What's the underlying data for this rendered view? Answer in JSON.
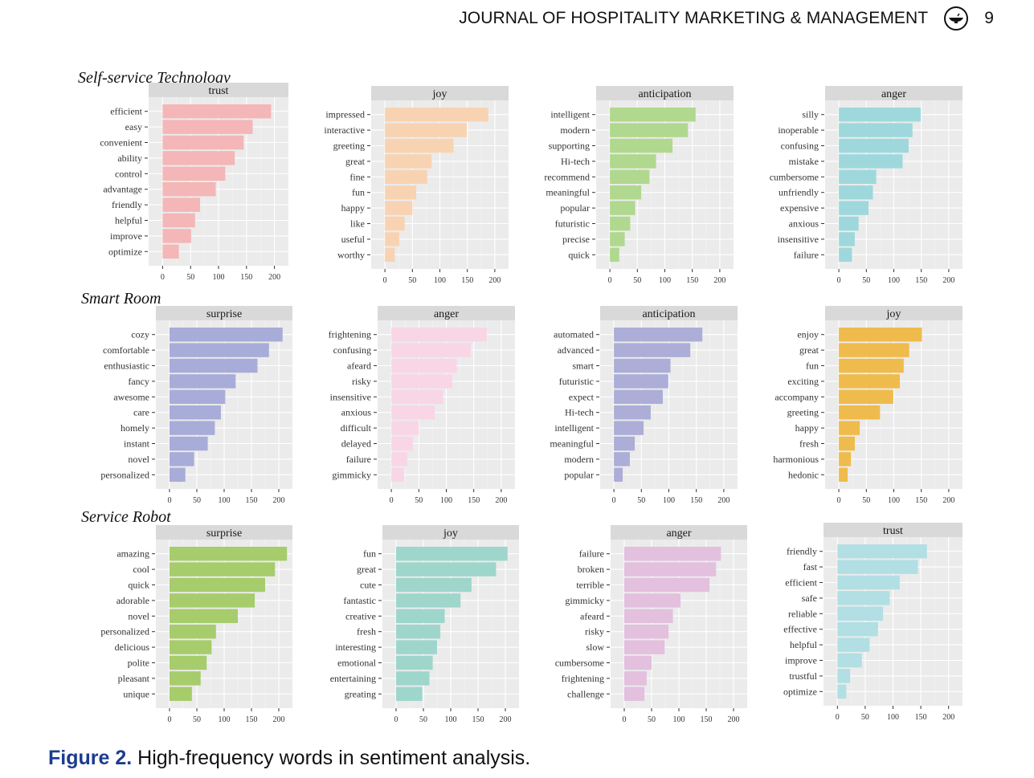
{
  "header": {
    "journal": "JOURNAL OF HOSPITALITY MARKETING & MANAGEMENT",
    "logo_icon": "lamp-logo-icon",
    "page_number": "9"
  },
  "caption": {
    "figure_label": "Figure 2.",
    "text": " High-frequency words in sentiment analysis."
  },
  "sections": [
    {
      "title": "Self-service Technology"
    },
    {
      "title": "Smart Room"
    },
    {
      "title": "Service Robot"
    }
  ],
  "chart_data": [
    {
      "type": "bar",
      "orientation": "horizontal",
      "section": "Self-service Technology",
      "title": "trust",
      "color": "#f4b6b6",
      "categories": [
        "efficient",
        "easy",
        "convenient",
        "ability",
        "control",
        "advantage",
        "friendly",
        "helpful",
        "improve",
        "optimize"
      ],
      "values": [
        194,
        161,
        145,
        129,
        112,
        95,
        67,
        58,
        51,
        29
      ],
      "xlim": [
        -25,
        225
      ],
      "xticks": [
        0,
        50,
        100,
        150,
        200
      ],
      "grid": true
    },
    {
      "type": "bar",
      "orientation": "horizontal",
      "section": "Self-service Technology",
      "title": "joy",
      "color": "#f8d3b2",
      "categories": [
        "impressed",
        "interactive",
        "greeting",
        "great",
        "fine",
        "fun",
        "happy",
        "like",
        "useful",
        "worthy"
      ],
      "values": [
        188,
        149,
        125,
        85,
        77,
        57,
        50,
        36,
        26,
        18
      ],
      "xlim": [
        -25,
        225
      ],
      "xticks": [
        0,
        50,
        100,
        150,
        200
      ],
      "grid": true
    },
    {
      "type": "bar",
      "orientation": "horizontal",
      "section": "Self-service Technology",
      "title": "anticipation",
      "color": "#b0d88e",
      "categories": [
        "intelligent",
        "modern",
        "supporting",
        "Hi-tech",
        "recommend",
        "meaningful",
        "popular",
        "futuristic",
        "precise",
        "quick"
      ],
      "values": [
        156,
        142,
        114,
        84,
        72,
        57,
        46,
        37,
        27,
        17
      ],
      "xlim": [
        -25,
        225
      ],
      "xticks": [
        0,
        50,
        100,
        150,
        200
      ],
      "grid": true
    },
    {
      "type": "bar",
      "orientation": "horizontal",
      "section": "Self-service Technology",
      "title": "anger",
      "color": "#9ed8dc",
      "categories": [
        "silly",
        "inoperable",
        "confusing",
        "mistake",
        "cumbersome",
        "unfriendly",
        "expensive",
        "anxious",
        "insensitive",
        "failure"
      ],
      "values": [
        149,
        134,
        127,
        116,
        68,
        62,
        54,
        36,
        29,
        24
      ],
      "xlim": [
        -25,
        225
      ],
      "xticks": [
        0,
        50,
        100,
        150,
        200
      ],
      "grid": true
    },
    {
      "type": "bar",
      "orientation": "horizontal",
      "section": "Smart Room",
      "title": "surprise",
      "color": "#a8acd8",
      "categories": [
        "cozy",
        "comfortable",
        "enthusiastic",
        "fancy",
        "awesome",
        "care",
        "homely",
        "instant",
        "novel",
        "personalized"
      ],
      "values": [
        207,
        182,
        161,
        121,
        102,
        94,
        83,
        70,
        45,
        29
      ],
      "xlim": [
        -25,
        225
      ],
      "xticks": [
        0,
        50,
        100,
        150,
        200
      ],
      "grid": true
    },
    {
      "type": "bar",
      "orientation": "horizontal",
      "section": "Smart Room",
      "title": "anger",
      "color": "#f8d6e6",
      "categories": [
        "frightening",
        "confusing",
        "afeard",
        "risky",
        "insensitive",
        "anxious",
        "difficult",
        "delayed",
        "failure",
        "gimmicky"
      ],
      "values": [
        174,
        145,
        119,
        111,
        94,
        79,
        50,
        39,
        29,
        23
      ],
      "xlim": [
        -25,
        225
      ],
      "xticks": [
        0,
        50,
        100,
        150,
        200
      ],
      "grid": true
    },
    {
      "type": "bar",
      "orientation": "horizontal",
      "section": "Smart Room",
      "title": "anticipation",
      "color": "#acaed8",
      "categories": [
        "automated",
        "advanced",
        "smart",
        "futuristic",
        "expect",
        "Hi-tech",
        "intelligent",
        "meaningful",
        "modern",
        "popular"
      ],
      "values": [
        161,
        139,
        103,
        99,
        89,
        67,
        54,
        38,
        29,
        16
      ],
      "xlim": [
        -25,
        225
      ],
      "xticks": [
        0,
        50,
        100,
        150,
        200
      ],
      "grid": true
    },
    {
      "type": "bar",
      "orientation": "horizontal",
      "section": "Smart Room",
      "title": "joy",
      "color": "#efbb4c",
      "categories": [
        "enjoy",
        "great",
        "fun",
        "exciting",
        "accompany",
        "greeting",
        "happy",
        "fresh",
        "harmonious",
        "hedonic"
      ],
      "values": [
        151,
        128,
        118,
        111,
        99,
        75,
        38,
        29,
        22,
        16
      ],
      "xlim": [
        -25,
        225
      ],
      "xticks": [
        0,
        50,
        100,
        150,
        200
      ],
      "grid": true
    },
    {
      "type": "bar",
      "orientation": "horizontal",
      "section": "Service Robot",
      "title": "surprise",
      "color": "#a6cc6c",
      "categories": [
        "amazing",
        "cool",
        "quick",
        "adorable",
        "novel",
        "personalized",
        "delicious",
        "polite",
        "pleasant",
        "unique"
      ],
      "values": [
        215,
        193,
        175,
        156,
        125,
        85,
        77,
        68,
        57,
        41
      ],
      "xlim": [
        -25,
        225
      ],
      "xticks": [
        0,
        50,
        100,
        150,
        200
      ],
      "grid": true
    },
    {
      "type": "bar",
      "orientation": "horizontal",
      "section": "Service Robot",
      "title": "joy",
      "color": "#9ed6cc",
      "categories": [
        "fun",
        "great",
        "cute",
        "fantastic",
        "creative",
        "fresh",
        "interesting",
        "emotional",
        "entertaining",
        "greating"
      ],
      "values": [
        204,
        183,
        138,
        118,
        89,
        81,
        75,
        67,
        61,
        48
      ],
      "xlim": [
        -25,
        225
      ],
      "xticks": [
        0,
        50,
        100,
        150,
        200
      ],
      "grid": true
    },
    {
      "type": "bar",
      "orientation": "horizontal",
      "section": "Service Robot",
      "title": "anger",
      "color": "#e2c0de",
      "categories": [
        "failure",
        "broken",
        "terrible",
        "gimmicky",
        "afeard",
        "risky",
        "slow",
        "cumbersome",
        "frightening",
        "challenge"
      ],
      "values": [
        177,
        168,
        156,
        103,
        89,
        81,
        74,
        50,
        41,
        37
      ],
      "xlim": [
        -25,
        225
      ],
      "xticks": [
        0,
        50,
        100,
        150,
        200
      ],
      "grid": true
    },
    {
      "type": "bar",
      "orientation": "horizontal",
      "section": "Service Robot",
      "title": "trust",
      "color": "#b1dfe3",
      "categories": [
        "friendly",
        "fast",
        "efficient",
        "safe",
        "reliable",
        "effective",
        "helpful",
        "improve",
        "trustful",
        "optimize"
      ],
      "values": [
        161,
        145,
        112,
        94,
        82,
        73,
        58,
        44,
        23,
        16
      ],
      "xlim": [
        -25,
        225
      ],
      "xticks": [
        0,
        50,
        100,
        150,
        200
      ],
      "grid": true
    }
  ]
}
